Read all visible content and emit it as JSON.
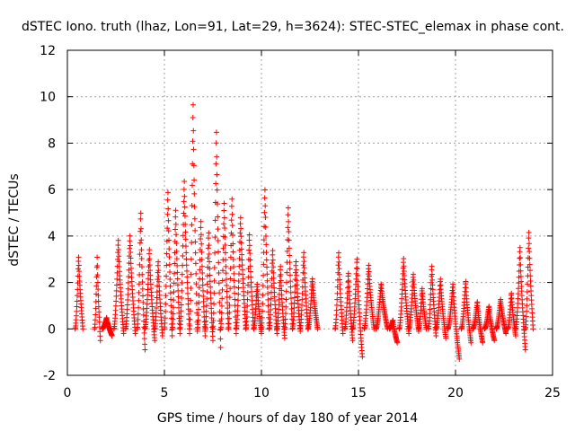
{
  "chart_data": {
    "type": "scatter",
    "title": "dSTEC Iono. truth (lhaz, Lon=91, Lat=29, h=3624): STEC-STEC_elemax in phase cont.",
    "xlabel": "GPS time / hours of day 180 of year 2014",
    "ylabel": "dSTEC  / TECUs",
    "xlim": [
      0,
      25
    ],
    "ylim": [
      -2,
      12
    ],
    "xticks": [
      "0",
      "5",
      "10",
      "15",
      "20",
      "25"
    ],
    "yticks": [
      "-2",
      "0",
      "2",
      "4",
      "6",
      "8",
      "10",
      "12"
    ],
    "grid": true,
    "marker": "+",
    "color": "#ff0000",
    "arcs": [
      {
        "start": 0.4,
        "end": 0.8,
        "min": 0.0,
        "max": 3.2
      },
      {
        "start": 1.4,
        "end": 1.7,
        "min": -0.5,
        "max": 3.2
      },
      {
        "start": 1.8,
        "end": 2.3,
        "min": -0.3,
        "max": 0.5
      },
      {
        "start": 2.4,
        "end": 2.9,
        "min": -0.2,
        "max": 3.9
      },
      {
        "start": 3.0,
        "end": 3.5,
        "min": -0.2,
        "max": 4.1
      },
      {
        "start": 3.6,
        "end": 4.0,
        "min": -0.9,
        "max": 5.2
      },
      {
        "start": 4.0,
        "end": 4.5,
        "min": -0.5,
        "max": 3.5
      },
      {
        "start": 4.5,
        "end": 4.9,
        "min": -0.3,
        "max": 3.0
      },
      {
        "start": 5.0,
        "end": 5.4,
        "min": -0.3,
        "max": 6.1
      },
      {
        "start": 5.4,
        "end": 5.8,
        "min": -0.2,
        "max": 5.3
      },
      {
        "start": 5.8,
        "end": 6.3,
        "min": -0.2,
        "max": 6.5
      },
      {
        "start": 6.3,
        "end": 6.7,
        "min": -0.1,
        "max": 10.0
      },
      {
        "start": 6.7,
        "end": 7.1,
        "min": -0.3,
        "max": 4.8
      },
      {
        "start": 7.1,
        "end": 7.5,
        "min": -0.5,
        "max": 4.3
      },
      {
        "start": 7.5,
        "end": 7.9,
        "min": -0.8,
        "max": 8.8
      },
      {
        "start": 7.9,
        "end": 8.3,
        "min": 0.0,
        "max": 5.6
      },
      {
        "start": 8.3,
        "end": 8.7,
        "min": -0.2,
        "max": 5.8
      },
      {
        "start": 8.7,
        "end": 9.2,
        "min": 0.0,
        "max": 4.9
      },
      {
        "start": 9.2,
        "end": 9.6,
        "min": 0.0,
        "max": 4.2
      },
      {
        "start": 9.6,
        "end": 10.0,
        "min": -0.2,
        "max": 2.0
      },
      {
        "start": 10.0,
        "end": 10.4,
        "min": 0.0,
        "max": 6.2
      },
      {
        "start": 10.4,
        "end": 10.8,
        "min": -0.2,
        "max": 3.5
      },
      {
        "start": 10.8,
        "end": 11.2,
        "min": -0.4,
        "max": 2.8
      },
      {
        "start": 11.2,
        "end": 11.6,
        "min": 0.0,
        "max": 5.4
      },
      {
        "start": 11.6,
        "end": 12.0,
        "min": -0.1,
        "max": 3.0
      },
      {
        "start": 12.0,
        "end": 12.4,
        "min": 0.0,
        "max": 3.4
      },
      {
        "start": 12.4,
        "end": 12.9,
        "min": 0.0,
        "max": 2.2
      },
      {
        "start": 13.8,
        "end": 14.2,
        "min": -0.2,
        "max": 3.4
      },
      {
        "start": 14.3,
        "end": 14.7,
        "min": -0.5,
        "max": 2.5
      },
      {
        "start": 14.7,
        "end": 15.2,
        "min": -1.2,
        "max": 3.1
      },
      {
        "start": 15.3,
        "end": 15.8,
        "min": 0.0,
        "max": 2.8
      },
      {
        "start": 15.9,
        "end": 16.5,
        "min": 0.0,
        "max": 2.0
      },
      {
        "start": 16.6,
        "end": 17.0,
        "min": -0.6,
        "max": 0.4
      },
      {
        "start": 17.1,
        "end": 17.6,
        "min": -0.2,
        "max": 3.1
      },
      {
        "start": 17.6,
        "end": 18.1,
        "min": -0.1,
        "max": 2.4
      },
      {
        "start": 18.1,
        "end": 18.5,
        "min": 0.0,
        "max": 1.8
      },
      {
        "start": 18.6,
        "end": 19.0,
        "min": -0.3,
        "max": 2.8
      },
      {
        "start": 19.0,
        "end": 19.5,
        "min": -0.4,
        "max": 2.2
      },
      {
        "start": 19.6,
        "end": 20.2,
        "min": -1.3,
        "max": 2.0
      },
      {
        "start": 20.3,
        "end": 20.8,
        "min": -0.6,
        "max": 2.1
      },
      {
        "start": 20.9,
        "end": 21.4,
        "min": -0.6,
        "max": 1.2
      },
      {
        "start": 21.5,
        "end": 22.0,
        "min": -0.5,
        "max": 1.0
      },
      {
        "start": 22.1,
        "end": 22.6,
        "min": -0.2,
        "max": 1.3
      },
      {
        "start": 22.7,
        "end": 23.1,
        "min": -0.3,
        "max": 1.6
      },
      {
        "start": 23.1,
        "end": 23.6,
        "min": -0.9,
        "max": 3.6
      },
      {
        "start": 23.6,
        "end": 24.0,
        "min": 0.0,
        "max": 4.3
      }
    ]
  }
}
